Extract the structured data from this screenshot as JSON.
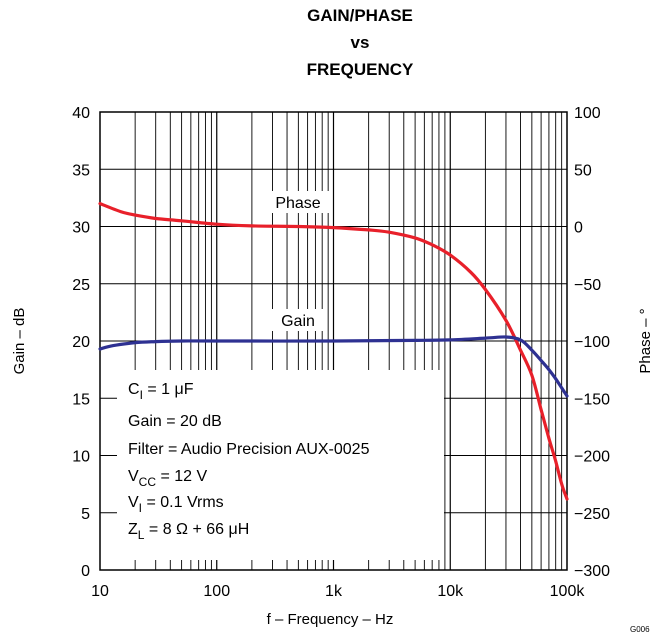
{
  "chart_data": {
    "type": "line",
    "title": [
      "GAIN/PHASE",
      "vs",
      "FREQUENCY"
    ],
    "xlabel": "f – Frequency – Hz",
    "ylabel_left": "Gain – dB",
    "ylabel_right": "Phase – °",
    "x_scale": "log",
    "xlim": [
      10,
      100000
    ],
    "ylim_left": [
      0,
      40
    ],
    "ylim_right": [
      -300,
      100
    ],
    "x_ticks": [
      {
        "value": 10,
        "label": "10"
      },
      {
        "value": 100,
        "label": "100"
      },
      {
        "value": 1000,
        "label": "1k"
      },
      {
        "value": 10000,
        "label": "10k"
      },
      {
        "value": 100000,
        "label": "100k"
      }
    ],
    "y_ticks_left": [
      {
        "value": 0,
        "label": "0"
      },
      {
        "value": 5,
        "label": "5"
      },
      {
        "value": 10,
        "label": "10"
      },
      {
        "value": 15,
        "label": "15"
      },
      {
        "value": 20,
        "label": "20"
      },
      {
        "value": 25,
        "label": "25"
      },
      {
        "value": 30,
        "label": "30"
      },
      {
        "value": 35,
        "label": "35"
      },
      {
        "value": 40,
        "label": "40"
      }
    ],
    "y_ticks_right": [
      {
        "value": 100,
        "label": "100"
      },
      {
        "value": 50,
        "label": "50"
      },
      {
        "value": 0,
        "label": "0"
      },
      {
        "value": -50,
        "label": "−50"
      },
      {
        "value": -100,
        "label": "−100"
      },
      {
        "value": -150,
        "label": "−150"
      },
      {
        "value": -200,
        "label": "−200"
      },
      {
        "value": -250,
        "label": "−250"
      },
      {
        "value": -300,
        "label": "−300"
      }
    ],
    "grid": true,
    "series": [
      {
        "name": "Phase",
        "axis": "right",
        "color": "#e8202a",
        "x": [
          10,
          15,
          20,
          30,
          50,
          100,
          200,
          500,
          1000,
          2000,
          3000,
          5000,
          7000,
          10000,
          15000,
          20000,
          30000,
          40000,
          50000,
          60000,
          70000,
          80000,
          90000,
          100000
        ],
        "y": [
          20,
          13,
          10,
          7,
          5,
          2,
          0.5,
          0,
          -1,
          -3,
          -5,
          -10,
          -16,
          -25,
          -40,
          -55,
          -82,
          -108,
          -130,
          -160,
          -185,
          -205,
          -225,
          -238
        ]
      },
      {
        "name": "Gain",
        "axis": "left",
        "color": "#2e3192",
        "x": [
          10,
          13,
          20,
          30,
          50,
          100,
          1000,
          5000,
          10000,
          20000,
          30000,
          40000,
          50000,
          60000,
          70000,
          80000,
          90000,
          100000
        ],
        "y": [
          19.3,
          19.6,
          19.85,
          19.95,
          20,
          20,
          20,
          20.05,
          20.1,
          20.25,
          20.35,
          20.1,
          19.2,
          18.3,
          17.5,
          16.7,
          15.9,
          15.2
        ]
      }
    ],
    "annotations": {
      "phase_label": "Phase",
      "gain_label": "Gain",
      "conditions": [
        {
          "main": "C",
          "sub": "I",
          "rest": " = 1 μF"
        },
        {
          "main": "Gain = 20 dB",
          "sub": "",
          "rest": ""
        },
        {
          "main": "Filter = Audio Precision AUX-0025",
          "sub": "",
          "rest": ""
        },
        {
          "main": "V",
          "sub": "CC",
          "rest": " = 12 V"
        },
        {
          "main": "V",
          "sub": "I",
          "rest": " = 0.1 Vrms"
        },
        {
          "main": "Z",
          "sub": "L",
          "rest": " = 8 Ω + 66 μH"
        }
      ],
      "corner_code": "G006"
    }
  }
}
